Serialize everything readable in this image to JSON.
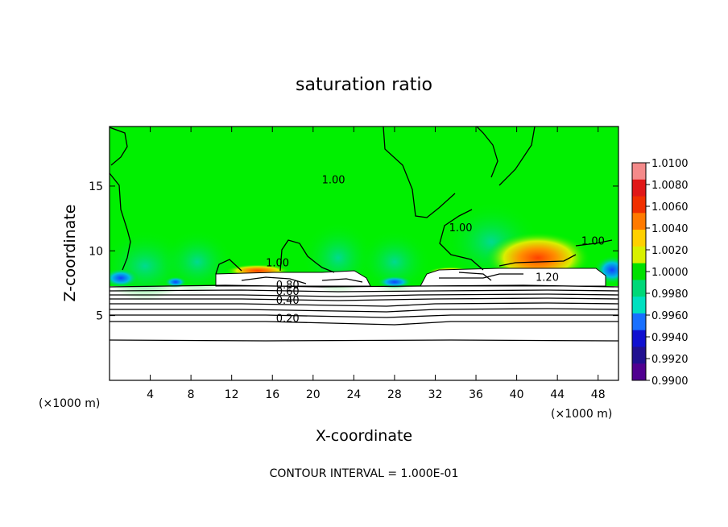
{
  "chart_data": {
    "type": "heatmap",
    "title": "saturation ratio",
    "xlabel": "X-coordinate",
    "ylabel": "Z-coordinate",
    "x_unit": "(×1000 m)",
    "y_unit": "(×1000 m)",
    "xlim": [
      0,
      50
    ],
    "ylim": [
      0,
      19.6
    ],
    "x_ticks": [
      "4",
      "8",
      "12",
      "16",
      "20",
      "24",
      "28",
      "32",
      "36",
      "40",
      "44",
      "48"
    ],
    "y_ticks": [
      "5",
      "10",
      "15"
    ],
    "colorbar": {
      "min": 0.99,
      "max": 1.01,
      "labels": [
        "1.0100",
        "1.0080",
        "1.0060",
        "1.0040",
        "1.0020",
        "1.0000",
        "0.9980",
        "0.9960",
        "0.9940",
        "0.9920",
        "0.9900"
      ],
      "colors": [
        "#f48a8a",
        "#e01818",
        "#f03000",
        "#ff7a00",
        "#ffd000",
        "#d8f000",
        "#00e000",
        "#00d878",
        "#00e0c0",
        "#1870ff",
        "#1010d0",
        "#201090",
        "#500090"
      ]
    },
    "contour_labels": [
      {
        "text": "1.00",
        "x": 22.0,
        "y": 15.2
      },
      {
        "text": "1.00",
        "x": 34.5,
        "y": 11.5
      },
      {
        "text": "1.00",
        "x": 47.5,
        "y": 10.5
      },
      {
        "text": "1.00",
        "x": 16.5,
        "y": 8.8
      },
      {
        "text": "1.20",
        "x": 43.0,
        "y": 7.7
      },
      {
        "text": "0.80",
        "x": 17.5,
        "y": 7.1
      },
      {
        "text": "0.60",
        "x": 17.5,
        "y": 6.6
      },
      {
        "text": "0.40",
        "x": 17.5,
        "y": 5.9
      },
      {
        "text": "0.20",
        "x": 17.5,
        "y": 4.5
      }
    ],
    "contour_interval_text": "CONTOUR INTERVAL = 1.000E-01"
  }
}
